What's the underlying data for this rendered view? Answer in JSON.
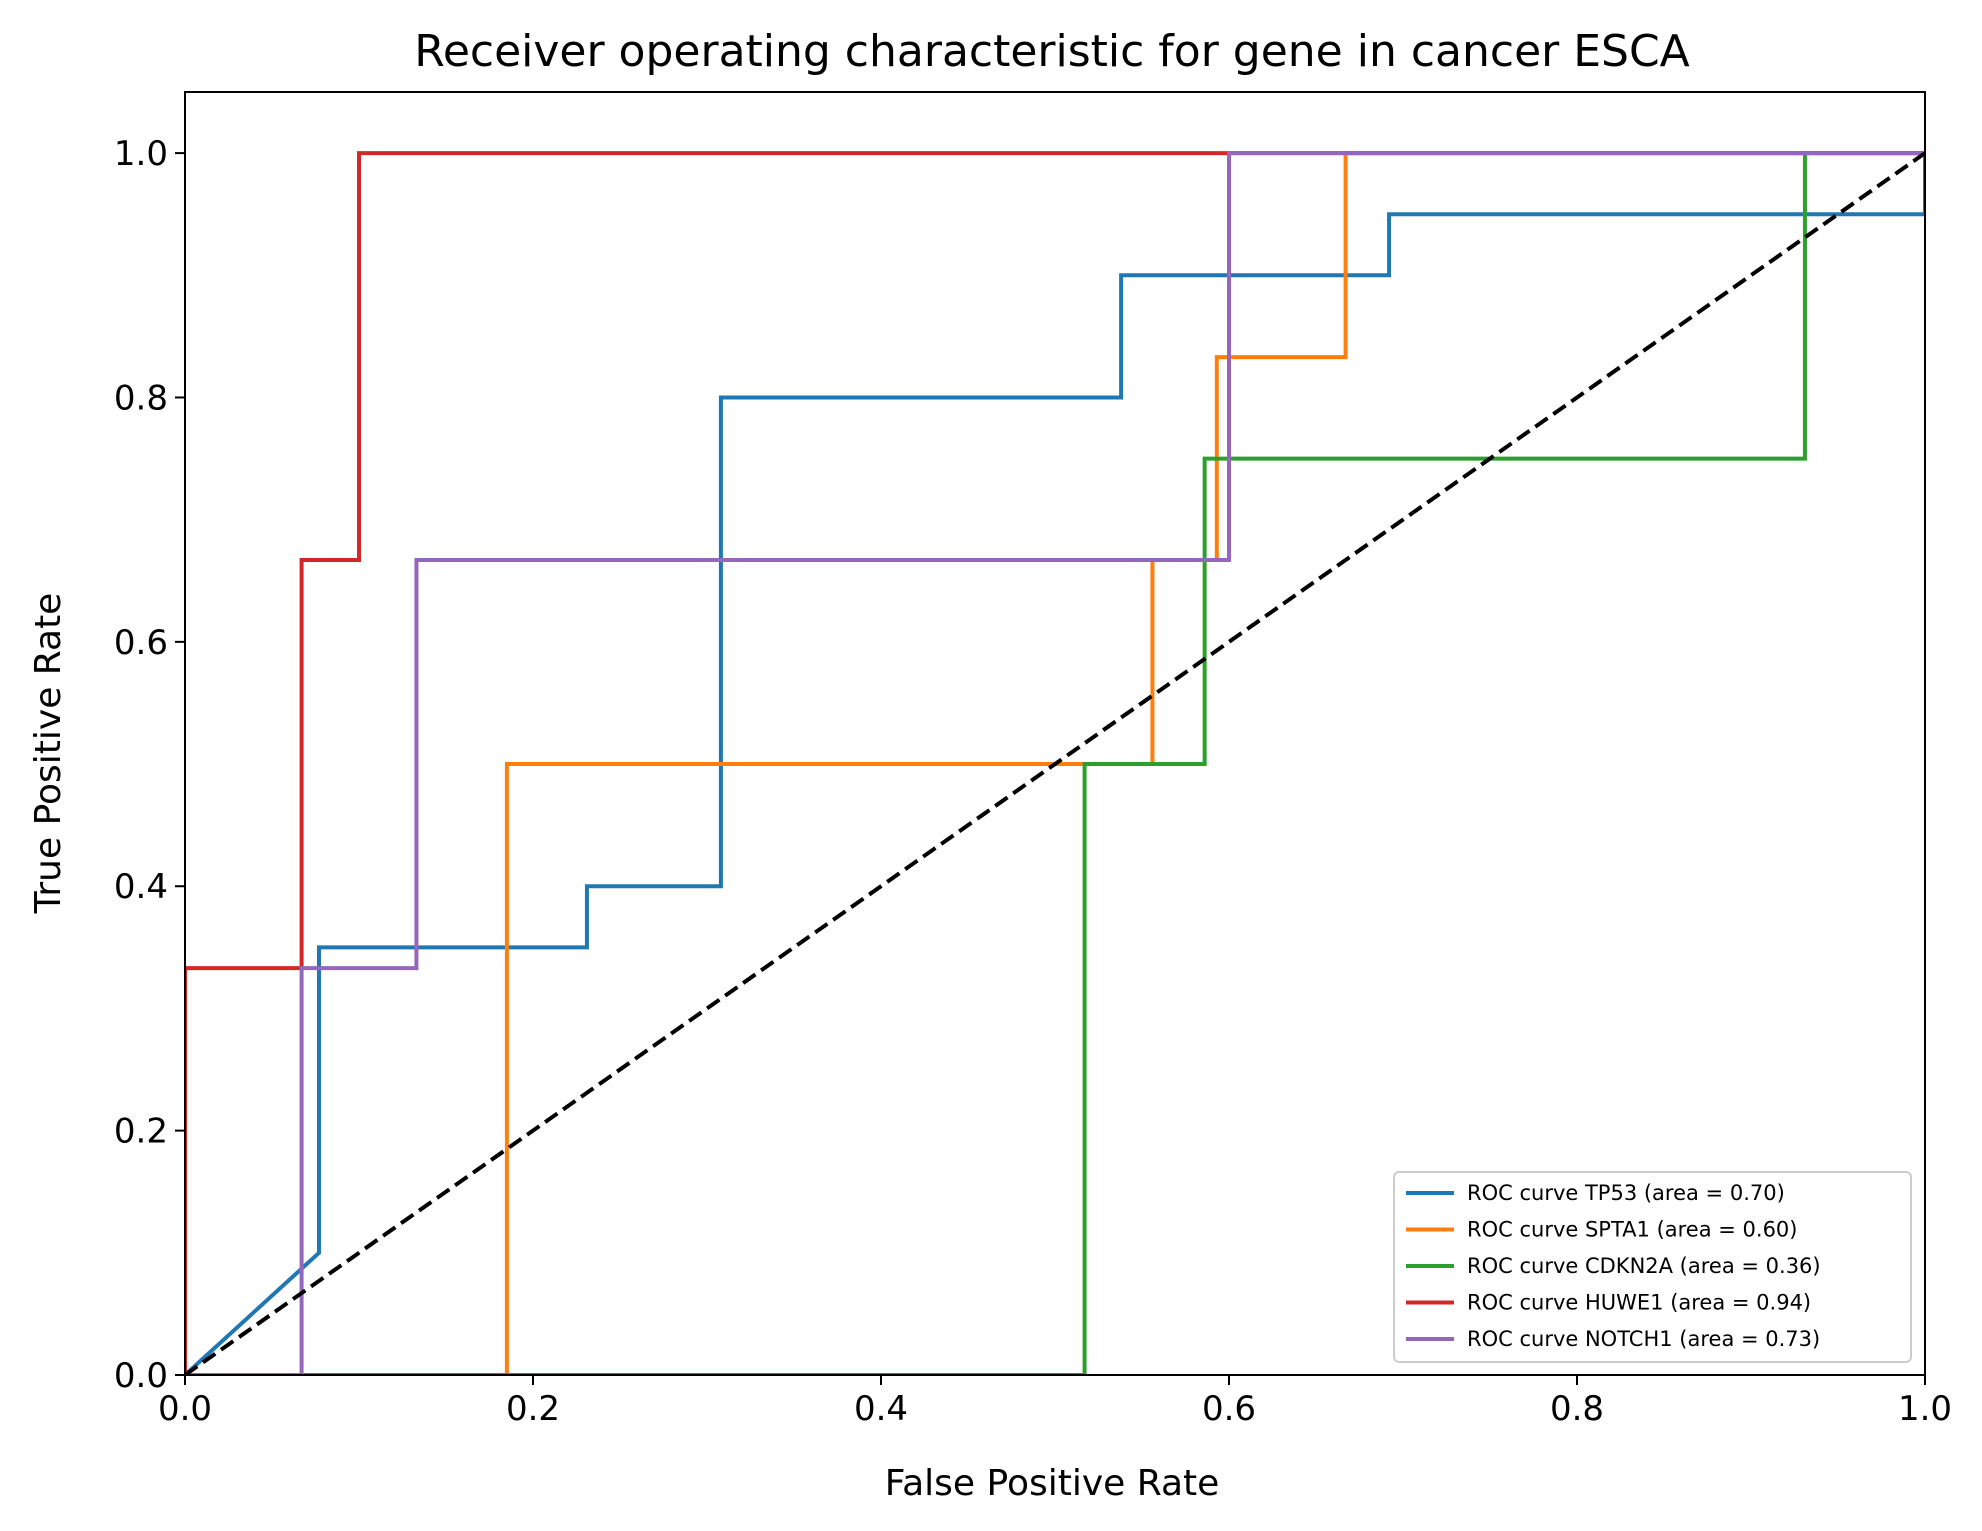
{
  "chart_data": {
    "type": "line",
    "title": "Receiver operating characteristic for gene in cancer ESCA",
    "xlabel": "False Positive Rate",
    "ylabel": "True Positive Rate",
    "xlim": [
      0.0,
      1.0
    ],
    "ylim": [
      0.0,
      1.05
    ],
    "xticks": [
      0.0,
      0.2,
      0.4,
      0.6,
      0.8,
      1.0
    ],
    "yticks": [
      0.0,
      0.2,
      0.4,
      0.6,
      0.8,
      1.0
    ],
    "xtick_labels": [
      "0.0",
      "0.2",
      "0.4",
      "0.6",
      "0.8",
      "1.0"
    ],
    "ytick_labels": [
      "0.0",
      "0.2",
      "0.4",
      "0.6",
      "0.8",
      "1.0"
    ],
    "grid": false,
    "legend_position": "bottom-right",
    "series": [
      {
        "name": "ROC curve TP53 (area = 0.70)",
        "color": "#1f77b4",
        "x": [
          0.0,
          0.077,
          0.077,
          0.231,
          0.231,
          0.308,
          0.308,
          0.538,
          0.538,
          0.692,
          0.692,
          1.0,
          1.0
        ],
        "y": [
          0.0,
          0.1,
          0.35,
          0.35,
          0.4,
          0.4,
          0.8,
          0.8,
          0.9,
          0.9,
          0.95,
          0.95,
          1.0
        ]
      },
      {
        "name": "ROC curve SPTA1 (area = 0.60)",
        "color": "#ff7f0e",
        "x": [
          0.0,
          0.185,
          0.185,
          0.556,
          0.556,
          0.593,
          0.593,
          0.667,
          0.667,
          1.0
        ],
        "y": [
          0.0,
          0.0,
          0.5,
          0.5,
          0.667,
          0.667,
          0.833,
          0.833,
          1.0,
          1.0
        ]
      },
      {
        "name": "ROC curve CDKN2A (area = 0.36)",
        "color": "#2ca02c",
        "x": [
          0.0,
          0.517,
          0.517,
          0.586,
          0.586,
          0.931,
          0.931,
          1.0
        ],
        "y": [
          0.0,
          0.0,
          0.5,
          0.5,
          0.75,
          0.75,
          1.0,
          1.0
        ]
      },
      {
        "name": "ROC curve HUWE1 (area = 0.94)",
        "color": "#d62728",
        "x": [
          0.0,
          0.0,
          0.067,
          0.067,
          0.1,
          0.1,
          1.0
        ],
        "y": [
          0.0,
          0.333,
          0.333,
          0.667,
          0.667,
          1.0,
          1.0
        ]
      },
      {
        "name": "ROC curve NOTCH1 (area = 0.73)",
        "color": "#9467bd",
        "x": [
          0.0,
          0.067,
          0.067,
          0.133,
          0.133,
          0.6,
          0.6,
          1.0
        ],
        "y": [
          0.0,
          0.0,
          0.333,
          0.333,
          0.667,
          0.667,
          1.0,
          1.0
        ]
      }
    ],
    "reference_line": {
      "color": "#000000",
      "style": "dashed",
      "x": [
        0.0,
        1.0
      ],
      "y": [
        0.0,
        1.0
      ]
    }
  }
}
